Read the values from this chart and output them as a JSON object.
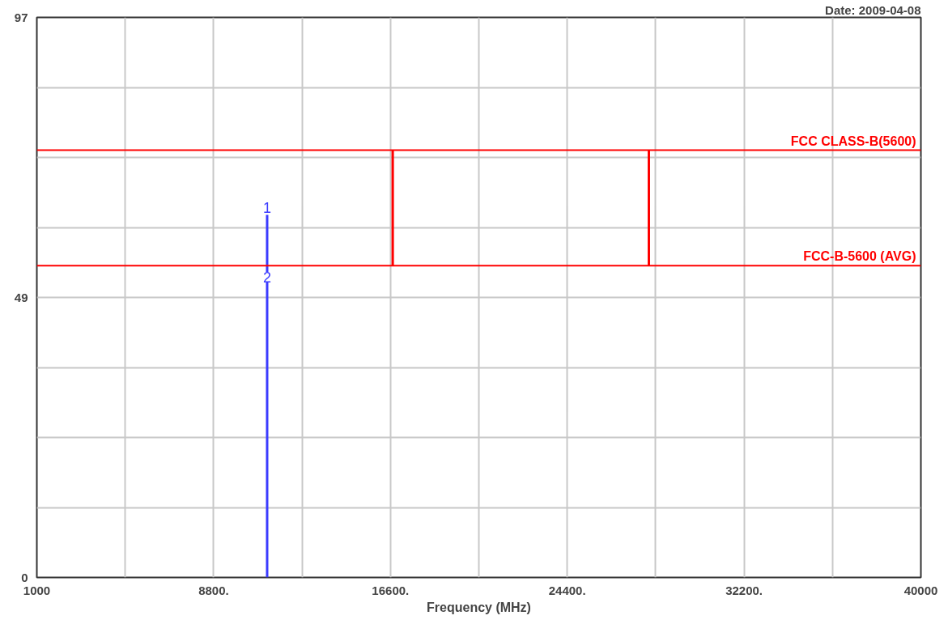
{
  "chart_data": {
    "type": "line",
    "xlabel": "Frequency (MHz)",
    "xlim": [
      1000,
      40000
    ],
    "ylim": [
      0,
      97
    ],
    "xticks": [
      1000,
      {
        "value": 4900,
        "label": null
      },
      {
        "value": 8800,
        "label": "8800."
      },
      {
        "value": 12700,
        "label": null
      },
      {
        "value": 16600,
        "label": "16600."
      },
      {
        "value": 20500,
        "label": null
      },
      {
        "value": 24400,
        "label": "24400."
      },
      {
        "value": 28300,
        "label": null
      },
      {
        "value": 32200,
        "label": "32200."
      },
      {
        "value": 36100,
        "label": null
      },
      40000
    ],
    "yticks": [
      0,
      {
        "value": 12.125,
        "label": null
      },
      {
        "value": 24.25,
        "label": null
      },
      {
        "value": 36.375,
        "label": null
      },
      {
        "value": 48.5,
        "label": "49"
      },
      {
        "value": 60.625,
        "label": null
      },
      {
        "value": 72.75,
        "label": null
      },
      {
        "value": 84.875,
        "label": null
      },
      97
    ],
    "grid": true,
    "series": [
      {
        "color": "#3b3bff",
        "x": [
          11160,
          11160
        ],
        "values": [
          0,
          62.8
        ]
      },
      {
        "color": "#ff0000",
        "x": [
          16700,
          16700
        ],
        "values": [
          54,
          74
        ]
      },
      {
        "color": "#ff0000",
        "x": [
          28000,
          28000
        ],
        "values": [
          54,
          74
        ]
      }
    ],
    "ref_lines": [
      {
        "axis": "y",
        "value": 74,
        "label": "FCC CLASS-B(5600)",
        "color": "#ff0000"
      },
      {
        "axis": "y",
        "value": 54,
        "label": "FCC-B-5600 (AVG)",
        "color": "#ff0000"
      }
    ],
    "annotations": [
      "Date: 2009-04-08",
      {
        "text": "1",
        "x": 11160,
        "y": 62.8
      },
      {
        "text": "2",
        "x": 11160,
        "y": 52
      }
    ]
  }
}
